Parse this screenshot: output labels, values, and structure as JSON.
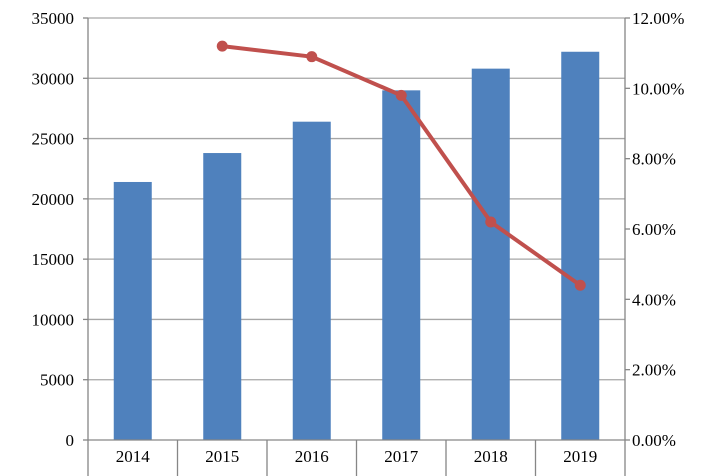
{
  "chart_data": {
    "type": "bar",
    "categories": [
      "2014",
      "2015",
      "2016",
      "2017",
      "2018",
      "2019"
    ],
    "series": [
      {
        "type": "bar",
        "axis": "left",
        "values": [
          21400,
          23800,
          26400,
          29000,
          30800,
          32200
        ]
      },
      {
        "type": "line",
        "axis": "right",
        "values": [
          null,
          11.2,
          10.9,
          9.8,
          6.2,
          4.4
        ]
      }
    ],
    "ylim_left": [
      0,
      35000
    ],
    "yticks_left": [
      "0",
      "5000",
      "10000",
      "15000",
      "20000",
      "25000",
      "30000",
      "35000"
    ],
    "ylim_right": [
      0,
      12
    ],
    "yticks_right": [
      "0.00%",
      "2.00%",
      "4.00%",
      "6.00%",
      "8.00%",
      "10.00%",
      "12.00%"
    ],
    "grid": true,
    "colors": {
      "bar": "#4F81BD",
      "line": "#C0504D",
      "grid": "#A6A6A6",
      "axis": "#868686"
    }
  }
}
